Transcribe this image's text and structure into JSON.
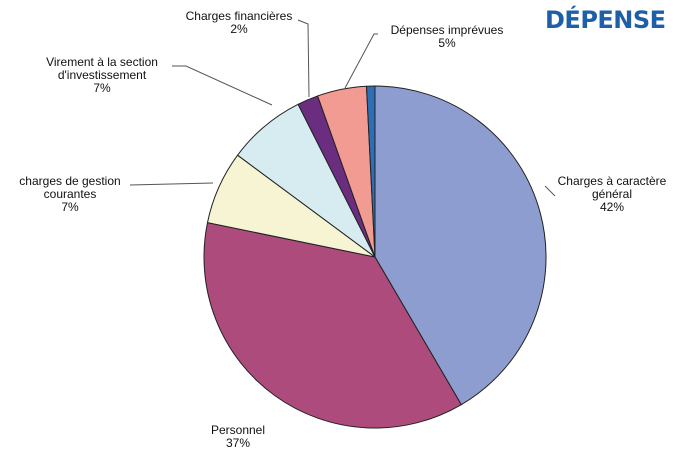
{
  "heading": "DÉPENSE",
  "colors": {
    "heading": "#1f5fa8",
    "leader": "#555555",
    "slice_stroke": "#222222"
  },
  "chart_data": {
    "type": "pie",
    "title": "",
    "legend": "none",
    "start_angle_deg": 0,
    "direction": "clockwise",
    "slices": [
      {
        "label": "Charges à caractère général",
        "label_lines": [
          "Charges à caractère",
          "général"
        ],
        "percent_label": "42%",
        "value": 42,
        "color": "#8e9dd0"
      },
      {
        "label": "Personnel",
        "label_lines": [
          "Personnel"
        ],
        "percent_label": "37%",
        "value": 37,
        "color": "#ad4b7d"
      },
      {
        "label": "charges de gestion courantes",
        "label_lines": [
          "charges de gestion",
          "courantes"
        ],
        "percent_label": "7%",
        "value": 7,
        "color": "#f6f4d2"
      },
      {
        "label": "Virement à la section d'investissement",
        "label_lines": [
          "Virement à la section",
          "d'investissement"
        ],
        "percent_label": "7%",
        "value": 7.5,
        "color": "#d6ecf1"
      },
      {
        "label": "Charges financières",
        "label_lines": [
          "Charges financières"
        ],
        "percent_label": "2%",
        "value": 2,
        "color": "#6b2d80"
      },
      {
        "label": "Dépenses imprévues",
        "label_lines": [
          "Dépenses imprévues"
        ],
        "percent_label": "5%",
        "value": 4.7,
        "color": "#f29b93"
      },
      {
        "label": "",
        "label_lines": [],
        "percent_label": "",
        "value": 0.8,
        "color": "#2c6fb5"
      }
    ]
  }
}
